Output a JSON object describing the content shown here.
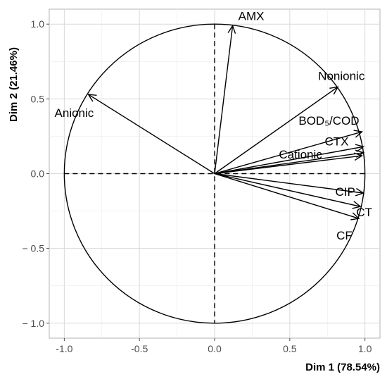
{
  "chart_data": {
    "type": "scatter",
    "subtype": "pca-correlation-circle",
    "title": "",
    "xlabel": "Dim 1 (78.54%)",
    "ylabel": "Dim 2 (21.46%)",
    "xlim": [
      -1.1,
      1.1
    ],
    "ylim": [
      -1.1,
      1.1
    ],
    "x_ticks": [
      -1.0,
      -0.5,
      0.0,
      0.5,
      1.0
    ],
    "y_ticks": [
      -1.0,
      -0.5,
      0.0,
      0.5,
      1.0
    ],
    "x_tick_labels": [
      "-1.0",
      "-0.5",
      "0.0",
      "0.5",
      "1.0"
    ],
    "y_tick_labels": [
      "− 1.0",
      "− 0.5",
      "0.0",
      "0.5",
      "1.0"
    ],
    "grid": true,
    "unit_circle": true,
    "vectors": [
      {
        "label": "AMX",
        "x": 0.12,
        "y": 0.99
      },
      {
        "label": "Nonionic",
        "x": 0.82,
        "y": 0.58
      },
      {
        "label": "BOD₅/COD",
        "x": 0.98,
        "y": 0.28
      },
      {
        "label": "CTX",
        "x": 0.99,
        "y": 0.18
      },
      {
        "label": "",
        "x": 0.99,
        "y": 0.14
      },
      {
        "label": "Cationic",
        "x": 0.98,
        "y": 0.12
      },
      {
        "label": "CIP",
        "x": 0.99,
        "y": -0.13
      },
      {
        "label": "CT",
        "x": 0.97,
        "y": -0.22
      },
      {
        "label": "CF",
        "x": 0.96,
        "y": -0.3
      },
      {
        "label": "Anionic",
        "x": -0.84,
        "y": 0.53
      }
    ]
  }
}
